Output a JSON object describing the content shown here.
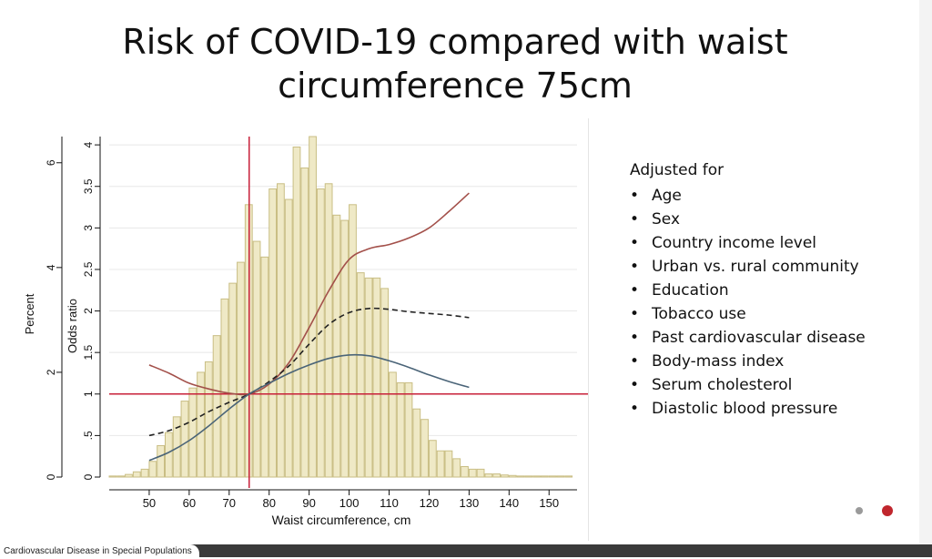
{
  "title": "Risk of COVID-19 compared with waist circumference 75cm",
  "adjusted_for": {
    "heading": "Adjusted for",
    "items": [
      "Age",
      "Sex",
      "Country income level",
      "Urban vs. rural community",
      "Education",
      "Tobacco use",
      "Past cardiovascular disease",
      "Body-mass index",
      "Serum cholesterol",
      "Diastolic blood pressure"
    ]
  },
  "footer": {
    "text": "Cardiovascular Disease in Special Populations"
  },
  "colors": {
    "bar_fill": "#efe9c6",
    "bar_stroke": "#c9be84",
    "red": "#c8203a",
    "brown": "#a3504a",
    "blue": "#4a6478",
    "black": "#222222",
    "grid": "#e8e8e8"
  },
  "chart_data": {
    "type": "bar",
    "xlabel": "Waist circumference, cm",
    "ylabel": "Percent",
    "y2label": "Odds ratio",
    "xlim": [
      40,
      157
    ],
    "ylim": [
      0,
      6.5
    ],
    "y2lim": [
      0,
      4.1
    ],
    "xticks": [
      50,
      60,
      70,
      80,
      90,
      100,
      110,
      120,
      130,
      140,
      150
    ],
    "yticks": [
      0,
      2,
      4,
      6
    ],
    "y2ticks": [
      0,
      0.5,
      1,
      1.5,
      2,
      2.5,
      3,
      3.5,
      4
    ],
    "y2ticklabels": [
      "0",
      ".5",
      "1",
      "1.5",
      "2",
      "2.5",
      "3",
      "3.5",
      "4"
    ],
    "bin_width": 2,
    "histogram": {
      "bin_starts": [
        40,
        42,
        44,
        46,
        48,
        50,
        52,
        54,
        56,
        58,
        60,
        62,
        64,
        66,
        68,
        70,
        72,
        74,
        76,
        78,
        80,
        82,
        84,
        86,
        88,
        90,
        92,
        94,
        96,
        98,
        100,
        102,
        104,
        106,
        108,
        110,
        112,
        114,
        116,
        118,
        120,
        122,
        124,
        126,
        128,
        130,
        132,
        134,
        136,
        138,
        140,
        142,
        144,
        146,
        148,
        150,
        152,
        154
      ],
      "percent": [
        0.02,
        0.02,
        0.05,
        0.1,
        0.15,
        0.3,
        0.6,
        0.85,
        1.15,
        1.45,
        1.7,
        2.0,
        2.2,
        2.7,
        3.4,
        3.7,
        4.1,
        5.2,
        4.5,
        4.2,
        5.5,
        5.6,
        5.3,
        6.3,
        5.9,
        6.5,
        5.5,
        5.6,
        5.0,
        4.9,
        5.2,
        3.9,
        3.8,
        3.8,
        3.6,
        2.0,
        1.8,
        1.8,
        1.3,
        1.1,
        0.7,
        0.5,
        0.5,
        0.35,
        0.2,
        0.15,
        0.15,
        0.06,
        0.06,
        0.04,
        0.03,
        0.02,
        0.02,
        0.02,
        0.02,
        0.02,
        0.02,
        0.02
      ]
    },
    "reference_lines": {
      "x": 75,
      "y_odds": 1
    },
    "series": [
      {
        "style": "solid",
        "color": "brown",
        "x": [
          50,
          55,
          60,
          65,
          70,
          75,
          80,
          85,
          90,
          95,
          100,
          105,
          110,
          115,
          120,
          125,
          130
        ],
        "y": [
          1.35,
          1.25,
          1.13,
          1.06,
          1.01,
          1.0,
          1.12,
          1.38,
          1.8,
          2.25,
          2.62,
          2.75,
          2.8,
          2.88,
          3.0,
          3.2,
          3.42
        ]
      },
      {
        "style": "dashed",
        "color": "black",
        "x": [
          50,
          55,
          60,
          65,
          70,
          75,
          80,
          85,
          90,
          95,
          100,
          105,
          110,
          115,
          120,
          125,
          130
        ],
        "y": [
          0.5,
          0.56,
          0.66,
          0.79,
          0.9,
          1.0,
          1.15,
          1.34,
          1.6,
          1.84,
          1.98,
          2.03,
          2.02,
          1.99,
          1.97,
          1.95,
          1.92
        ]
      },
      {
        "style": "solid",
        "color": "blue",
        "x": [
          50,
          55,
          60,
          65,
          70,
          75,
          80,
          85,
          90,
          95,
          100,
          105,
          110,
          115,
          120,
          125,
          130
        ],
        "y": [
          0.2,
          0.3,
          0.44,
          0.62,
          0.82,
          1.0,
          1.13,
          1.25,
          1.35,
          1.43,
          1.47,
          1.46,
          1.4,
          1.32,
          1.23,
          1.15,
          1.08
        ]
      }
    ]
  }
}
